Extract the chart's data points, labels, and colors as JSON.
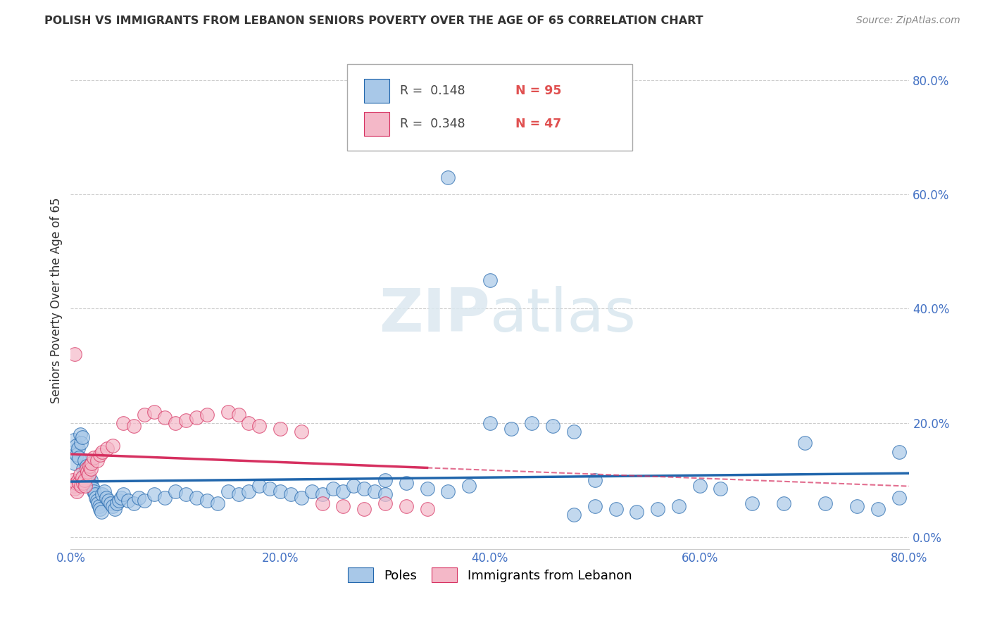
{
  "title": "POLISH VS IMMIGRANTS FROM LEBANON SENIORS POVERTY OVER THE AGE OF 65 CORRELATION CHART",
  "source": "Source: ZipAtlas.com",
  "ylabel": "Seniors Poverty Over the Age of 65",
  "xlim": [
    0.0,
    0.8
  ],
  "ylim": [
    -0.02,
    0.85
  ],
  "yticks": [
    0.0,
    0.2,
    0.4,
    0.6,
    0.8
  ],
  "xticks": [
    0.0,
    0.2,
    0.4,
    0.6,
    0.8
  ],
  "blue_R": 0.148,
  "blue_N": 95,
  "pink_R": 0.348,
  "pink_N": 47,
  "blue_color": "#a8c8e8",
  "pink_color": "#f4b8c8",
  "blue_line_color": "#2166ac",
  "pink_line_color": "#d63060",
  "background_color": "#ffffff",
  "grid_color": "#cccccc",
  "title_color": "#333333",
  "source_color": "#888888",
  "tick_color": "#4472c4",
  "blue_scatter_x": [
    0.002,
    0.003,
    0.004,
    0.005,
    0.006,
    0.007,
    0.008,
    0.009,
    0.01,
    0.011,
    0.012,
    0.013,
    0.014,
    0.015,
    0.016,
    0.017,
    0.018,
    0.019,
    0.02,
    0.021,
    0.022,
    0.023,
    0.024,
    0.025,
    0.026,
    0.027,
    0.028,
    0.029,
    0.03,
    0.032,
    0.034,
    0.036,
    0.038,
    0.04,
    0.042,
    0.044,
    0.046,
    0.048,
    0.05,
    0.055,
    0.06,
    0.065,
    0.07,
    0.08,
    0.09,
    0.1,
    0.11,
    0.12,
    0.13,
    0.14,
    0.15,
    0.16,
    0.17,
    0.18,
    0.19,
    0.2,
    0.21,
    0.22,
    0.23,
    0.24,
    0.25,
    0.26,
    0.27,
    0.28,
    0.29,
    0.3,
    0.32,
    0.34,
    0.36,
    0.38,
    0.4,
    0.42,
    0.44,
    0.46,
    0.48,
    0.5,
    0.52,
    0.54,
    0.56,
    0.58,
    0.36,
    0.6,
    0.62,
    0.65,
    0.68,
    0.7,
    0.72,
    0.75,
    0.77,
    0.79,
    0.3,
    0.4,
    0.5,
    0.48,
    0.79
  ],
  "blue_scatter_y": [
    0.15,
    0.17,
    0.13,
    0.16,
    0.145,
    0.155,
    0.14,
    0.18,
    0.165,
    0.175,
    0.12,
    0.135,
    0.115,
    0.125,
    0.11,
    0.105,
    0.095,
    0.1,
    0.09,
    0.085,
    0.08,
    0.075,
    0.07,
    0.065,
    0.06,
    0.055,
    0.05,
    0.045,
    0.075,
    0.08,
    0.07,
    0.065,
    0.06,
    0.055,
    0.05,
    0.06,
    0.065,
    0.07,
    0.075,
    0.065,
    0.06,
    0.07,
    0.065,
    0.075,
    0.07,
    0.08,
    0.075,
    0.07,
    0.065,
    0.06,
    0.08,
    0.075,
    0.08,
    0.09,
    0.085,
    0.08,
    0.075,
    0.07,
    0.08,
    0.075,
    0.085,
    0.08,
    0.09,
    0.085,
    0.08,
    0.075,
    0.095,
    0.085,
    0.08,
    0.09,
    0.2,
    0.19,
    0.2,
    0.195,
    0.185,
    0.1,
    0.05,
    0.045,
    0.05,
    0.055,
    0.63,
    0.09,
    0.085,
    0.06,
    0.06,
    0.165,
    0.06,
    0.055,
    0.05,
    0.15,
    0.1,
    0.45,
    0.055,
    0.04,
    0.07
  ],
  "pink_scatter_x": [
    0.002,
    0.003,
    0.004,
    0.005,
    0.006,
    0.007,
    0.008,
    0.009,
    0.01,
    0.011,
    0.012,
    0.013,
    0.014,
    0.015,
    0.016,
    0.017,
    0.018,
    0.019,
    0.02,
    0.022,
    0.025,
    0.028,
    0.03,
    0.035,
    0.04,
    0.05,
    0.06,
    0.07,
    0.08,
    0.09,
    0.1,
    0.11,
    0.12,
    0.13,
    0.15,
    0.16,
    0.17,
    0.18,
    0.2,
    0.22,
    0.24,
    0.26,
    0.28,
    0.3,
    0.32,
    0.34,
    0.004
  ],
  "pink_scatter_y": [
    0.1,
    0.09,
    0.085,
    0.095,
    0.08,
    0.1,
    0.095,
    0.11,
    0.09,
    0.105,
    0.095,
    0.1,
    0.09,
    0.12,
    0.115,
    0.11,
    0.125,
    0.12,
    0.13,
    0.14,
    0.135,
    0.145,
    0.15,
    0.155,
    0.16,
    0.2,
    0.195,
    0.215,
    0.22,
    0.21,
    0.2,
    0.205,
    0.21,
    0.215,
    0.22,
    0.215,
    0.2,
    0.195,
    0.19,
    0.185,
    0.06,
    0.055,
    0.05,
    0.06,
    0.055,
    0.05,
    0.32
  ]
}
